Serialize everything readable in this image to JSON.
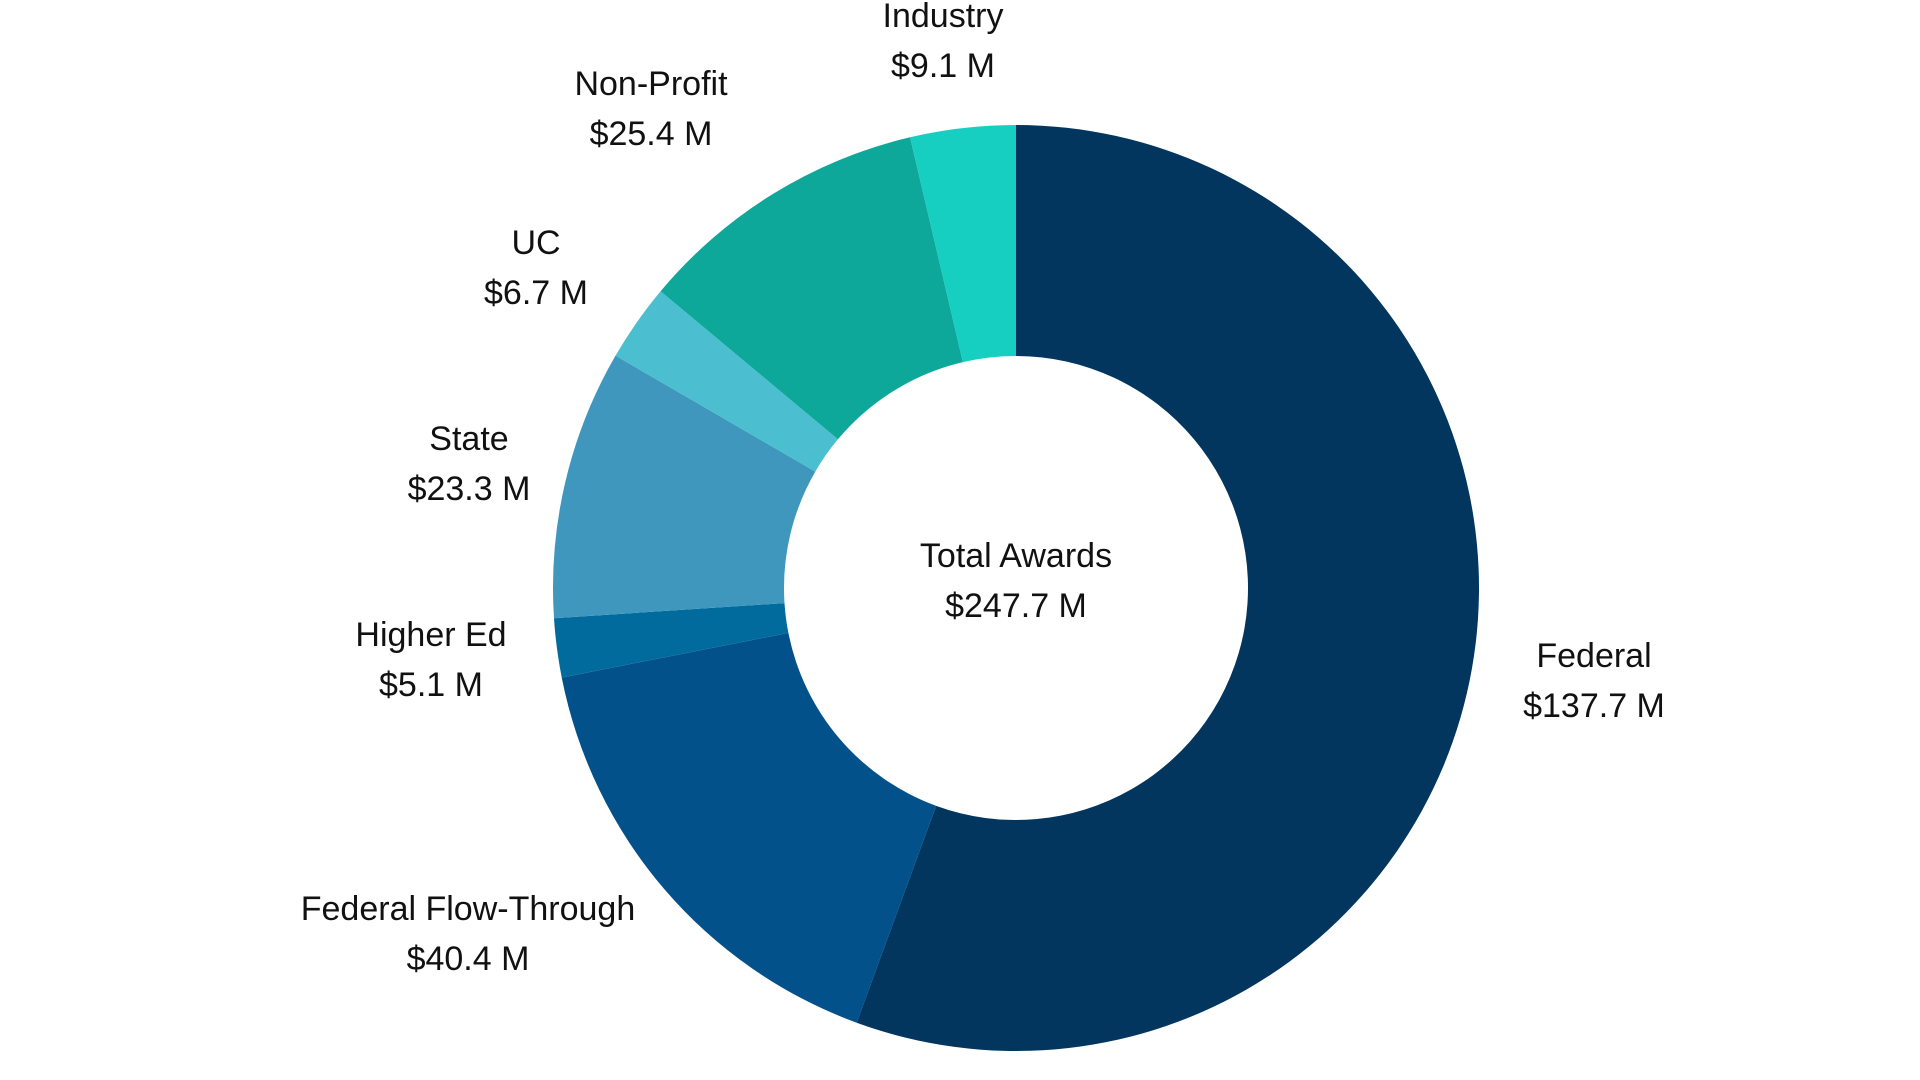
{
  "chart_data": {
    "type": "pie",
    "variant": "donut",
    "center_label": {
      "title": "Total Awards",
      "value": "$247.7 M"
    },
    "total": 247.7,
    "unit": "$ M",
    "legend": "none (direct labels)",
    "slices": [
      {
        "name": "Federal",
        "value": 137.7,
        "label": "$137.7 M",
        "color": "#02365e"
      },
      {
        "name": "Federal Flow-Through",
        "value": 40.4,
        "label": "$40.4 M",
        "color": "#02518a"
      },
      {
        "name": "Higher Ed",
        "value": 5.1,
        "label": "$5.1 M",
        "color": "#026b9d"
      },
      {
        "name": "State",
        "value": 23.3,
        "label": "$23.3 M",
        "color": "#3f97be"
      },
      {
        "name": "UC",
        "value": 6.7,
        "label": "$6.7 M",
        "color": "#4bbfd0"
      },
      {
        "name": "Non-Profit",
        "value": 25.4,
        "label": "$25.4 M",
        "color": "#0ea89a"
      },
      {
        "name": "Industry",
        "value": 9.1,
        "label": "$9.1 M",
        "color": "#16cfc0"
      }
    ]
  }
}
